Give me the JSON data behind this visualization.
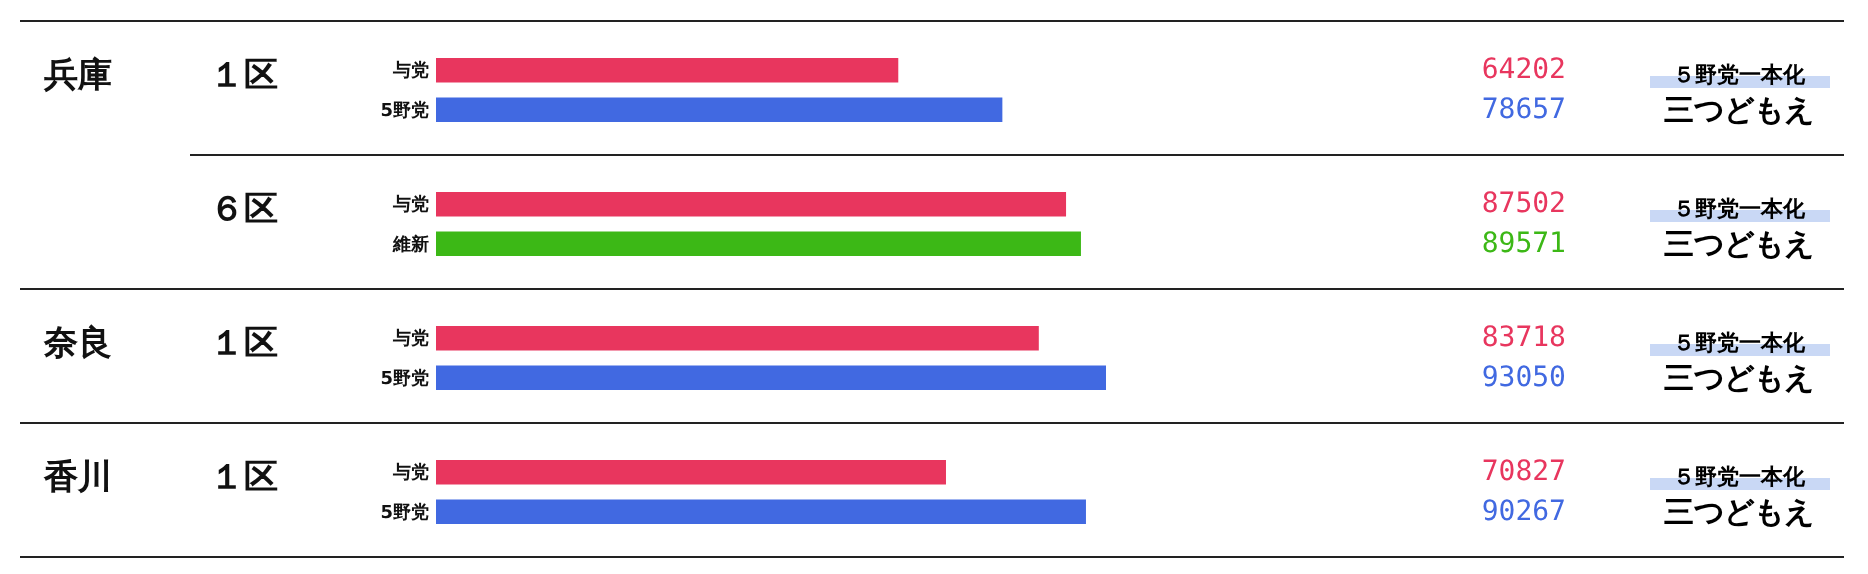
{
  "chart_data": [
    {
      "type": "bar",
      "orientation": "horizontal",
      "subtitle": "１区",
      "categories": [
        "与党",
        "5野党"
      ],
      "values": [
        64202,
        78657
      ],
      "colors": [
        "#e8365e",
        "#4169e1"
      ],
      "data_labels": true,
      "annotations": [
        "兵庫",
        "５野党一本化",
        "三つどもえ"
      ]
    },
    {
      "type": "bar",
      "orientation": "horizontal",
      "subtitle": "６区",
      "categories": [
        "与党",
        "維新"
      ],
      "values": [
        87502,
        89571
      ],
      "colors": [
        "#e8365e",
        "#3cb816"
      ],
      "data_labels": true,
      "annotations": [
        "５野党一本化",
        "三つどもえ"
      ]
    },
    {
      "type": "bar",
      "orientation": "horizontal",
      "subtitle": "１区",
      "categories": [
        "与党",
        "5野党"
      ],
      "values": [
        83718,
        93050
      ],
      "colors": [
        "#e8365e",
        "#4169e1"
      ],
      "data_labels": true,
      "annotations": [
        "奈良",
        "５野党一本化",
        "三つどもえ"
      ]
    },
    {
      "type": "bar",
      "orientation": "horizontal",
      "subtitle": "１区",
      "categories": [
        "与党",
        "5野党"
      ],
      "values": [
        70827,
        90267
      ],
      "colors": [
        "#e8365e",
        "#4169e1"
      ],
      "data_labels": true,
      "annotations": [
        "香川",
        "５野党一本化",
        "三つどもえ"
      ]
    }
  ]
}
